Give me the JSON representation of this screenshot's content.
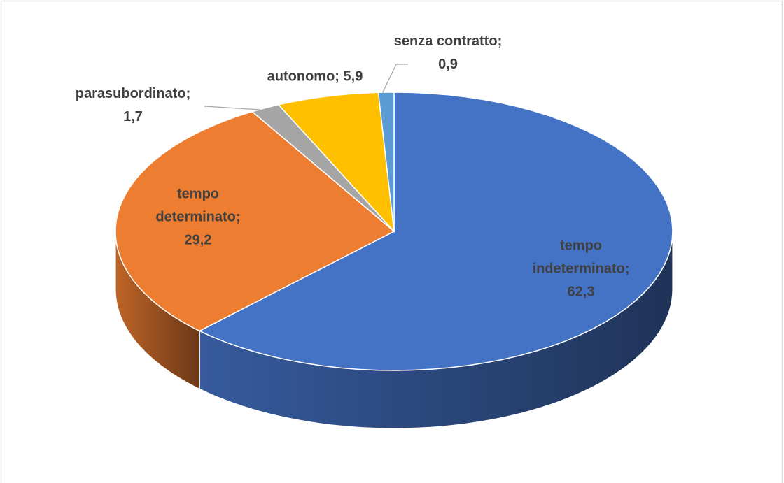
{
  "chart_data": {
    "type": "pie3d",
    "categories": [
      "tempo indeterminato",
      "tempo determinato",
      "parasubordinato",
      "autonomo",
      "senza contratto"
    ],
    "values": [
      62.3,
      29.2,
      1.7,
      5.9,
      0.9
    ],
    "value_labels": [
      "62,3",
      "29,2",
      "1,7",
      "5,9",
      "0,9"
    ],
    "label_separator": ";",
    "colors": [
      "#4472c4",
      "#ed7d31",
      "#a5a5a5",
      "#ffc000",
      "#5b9bd5"
    ]
  }
}
